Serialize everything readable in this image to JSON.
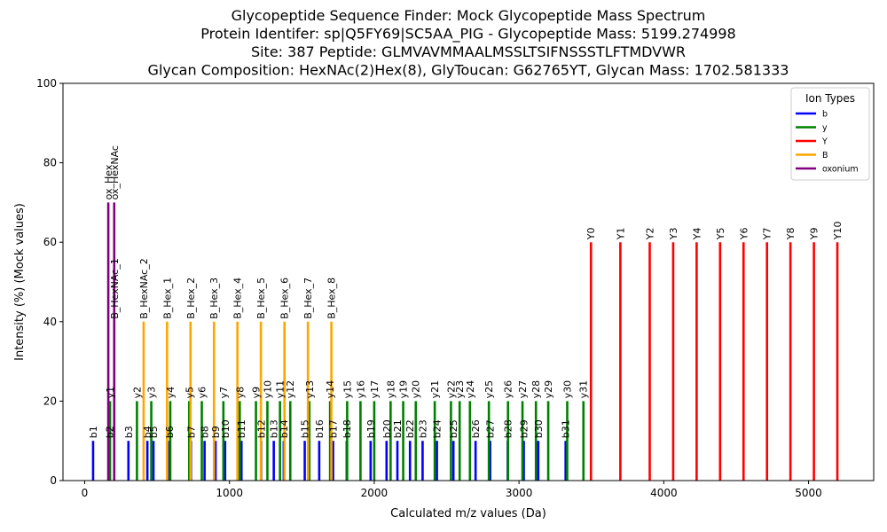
{
  "chart_data": {
    "type": "bar",
    "title_lines": [
      "Glycopeptide Sequence Finder: Mock Glycopeptide Mass Spectrum",
      "Protein Identifer: sp|Q5FY69|SC5AA_PIG - Glycopeptide Mass: 5199.274998",
      "Site: 387 Peptide: GLMVAVMMAALMSSLTSIFNSSSTLFTMDVWR",
      "Glycan Composition: HexNAc(2)Hex(8), GlyToucan: G62765YT, Glycan Mass: 1702.581333"
    ],
    "xlabel": "Calculated m/z values (Da)",
    "ylabel": "Intensity (%) (Mock values)",
    "xlim": [
      -150,
      5450
    ],
    "ylim": [
      0,
      100
    ],
    "xticks": [
      0,
      1000,
      2000,
      3000,
      4000,
      5000
    ],
    "yticks": [
      0,
      20,
      40,
      60,
      80,
      100
    ],
    "grid": false,
    "legend": {
      "title": "Ion Types",
      "placement": "upper right",
      "entries": [
        {
          "name": "b",
          "color": "#0000ff"
        },
        {
          "name": "y",
          "color": "#008000"
        },
        {
          "name": "Y",
          "color": "#ff0000"
        },
        {
          "name": "B",
          "color": "#ffa500"
        },
        {
          "name": "oxonium",
          "color": "#800080"
        }
      ]
    },
    "series": [
      {
        "name": "b",
        "color": "#0000ff",
        "intensity": 10,
        "points": [
          {
            "label": "b1",
            "x": 58
          },
          {
            "label": "b2",
            "x": 171
          },
          {
            "label": "b3",
            "x": 302
          },
          {
            "label": "b4",
            "x": 433
          },
          {
            "label": "b5",
            "x": 475
          },
          {
            "label": "b6",
            "x": 585
          },
          {
            "label": "b7",
            "x": 734
          },
          {
            "label": "b8",
            "x": 828
          },
          {
            "label": "b9",
            "x": 904
          },
          {
            "label": "b10",
            "x": 970
          },
          {
            "label": "b11",
            "x": 1083
          },
          {
            "label": "b12",
            "x": 1219
          },
          {
            "label": "b13",
            "x": 1306
          },
          {
            "label": "b14",
            "x": 1375
          },
          {
            "label": "b15",
            "x": 1520
          },
          {
            "label": "b16",
            "x": 1620
          },
          {
            "label": "b17",
            "x": 1716
          },
          {
            "label": "b18",
            "x": 1810
          },
          {
            "label": "b19",
            "x": 1975
          },
          {
            "label": "b20",
            "x": 2085
          },
          {
            "label": "b21",
            "x": 2160
          },
          {
            "label": "b22",
            "x": 2247
          },
          {
            "label": "b23",
            "x": 2334
          },
          {
            "label": "b24",
            "x": 2433
          },
          {
            "label": "b25",
            "x": 2547
          },
          {
            "label": "b26",
            "x": 2700
          },
          {
            "label": "b27",
            "x": 2801
          },
          {
            "label": "b28",
            "x": 2922
          },
          {
            "label": "b29",
            "x": 3033
          },
          {
            "label": "b30",
            "x": 3133
          },
          {
            "label": "b31",
            "x": 3322
          }
        ]
      },
      {
        "name": "y",
        "color": "#008000",
        "intensity": 20,
        "points": [
          {
            "label": "y1",
            "x": 175
          },
          {
            "label": "y2",
            "x": 361
          },
          {
            "label": "y3",
            "x": 460
          },
          {
            "label": "y4",
            "x": 591
          },
          {
            "label": "y5",
            "x": 722
          },
          {
            "label": "y6",
            "x": 809
          },
          {
            "label": "y7",
            "x": 958
          },
          {
            "label": "y8",
            "x": 1071
          },
          {
            "label": "y9",
            "x": 1183
          },
          {
            "label": "y10",
            "x": 1262
          },
          {
            "label": "y11",
            "x": 1349
          },
          {
            "label": "y12",
            "x": 1420
          },
          {
            "label": "y13",
            "x": 1552
          },
          {
            "label": "y14",
            "x": 1695
          },
          {
            "label": "y15",
            "x": 1813
          },
          {
            "label": "y16",
            "x": 1905
          },
          {
            "label": "y17",
            "x": 2000
          },
          {
            "label": "y18",
            "x": 2113
          },
          {
            "label": "y19",
            "x": 2200
          },
          {
            "label": "y20",
            "x": 2287
          },
          {
            "label": "y21",
            "x": 2418
          },
          {
            "label": "y22",
            "x": 2530
          },
          {
            "label": "y23",
            "x": 2590
          },
          {
            "label": "y24",
            "x": 2661
          },
          {
            "label": "y25",
            "x": 2792
          },
          {
            "label": "y26",
            "x": 2924
          },
          {
            "label": "y27",
            "x": 3024
          },
          {
            "label": "y28",
            "x": 3117
          },
          {
            "label": "y29",
            "x": 3202
          },
          {
            "label": "y30",
            "x": 3333
          },
          {
            "label": "y31",
            "x": 3445
          }
        ]
      },
      {
        "name": "Y",
        "color": "#ff0000",
        "intensity": 60,
        "points": [
          {
            "label": "Y0",
            "x": 3497
          },
          {
            "label": "Y1",
            "x": 3700
          },
          {
            "label": "Y2",
            "x": 3903
          },
          {
            "label": "Y3",
            "x": 4065
          },
          {
            "label": "Y4",
            "x": 4227
          },
          {
            "label": "Y5",
            "x": 4389
          },
          {
            "label": "Y6",
            "x": 4551
          },
          {
            "label": "Y7",
            "x": 4713
          },
          {
            "label": "Y8",
            "x": 4875
          },
          {
            "label": "Y9",
            "x": 5037
          },
          {
            "label": "Y10",
            "x": 5199
          }
        ]
      },
      {
        "name": "B",
        "color": "#ffa500",
        "intensity": 40,
        "points": [
          {
            "label": "B_HexNAc_1",
            "x": 204
          },
          {
            "label": "B_HexNAc_2",
            "x": 407
          },
          {
            "label": "B_Hex_1",
            "x": 569
          },
          {
            "label": "B_Hex_2",
            "x": 731
          },
          {
            "label": "B_Hex_3",
            "x": 893
          },
          {
            "label": "B_Hex_4",
            "x": 1055
          },
          {
            "label": "B_Hex_5",
            "x": 1217
          },
          {
            "label": "B_Hex_6",
            "x": 1380
          },
          {
            "label": "B_Hex_7",
            "x": 1542
          },
          {
            "label": "B_Hex_8",
            "x": 1704
          }
        ]
      },
      {
        "name": "oxonium",
        "color": "#800080",
        "intensity": 70,
        "points": [
          {
            "label": "ox_Hex",
            "x": 163
          },
          {
            "label": "ox_HexNAc",
            "x": 204
          }
        ]
      }
    ]
  }
}
